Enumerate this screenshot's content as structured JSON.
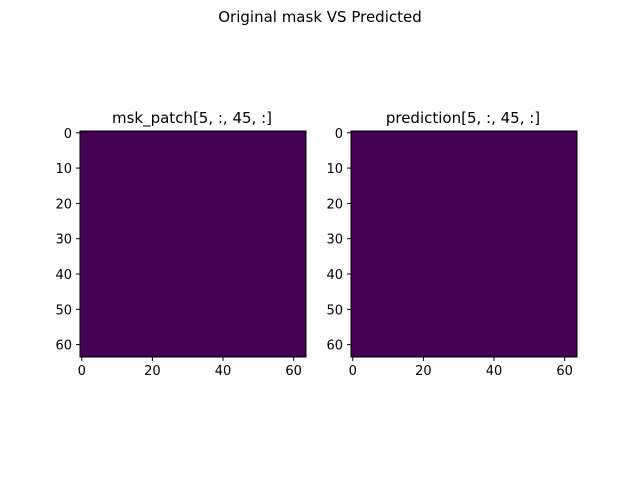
{
  "figure": {
    "suptitle": "Original mask VS Predicted"
  },
  "chart_data": [
    {
      "type": "heatmap",
      "title": "msk_patch[5, :, 45, :]",
      "xlabel": "",
      "ylabel": "",
      "rows": 64,
      "cols": 64,
      "fill_value": 0,
      "colormap": "viridis",
      "fill_color": "#440154",
      "xlim": [
        -0.5,
        63.5
      ],
      "ylim": [
        63.5,
        -0.5
      ],
      "xticks": [
        0,
        20,
        40,
        60
      ],
      "yticks": [
        0,
        10,
        20,
        30,
        40,
        50,
        60
      ],
      "grid": false
    },
    {
      "type": "heatmap",
      "title": "prediction[5, :, 45, :]",
      "xlabel": "",
      "ylabel": "",
      "rows": 64,
      "cols": 64,
      "fill_value": 0,
      "colormap": "viridis",
      "fill_color": "#440154",
      "xlim": [
        -0.5,
        63.5
      ],
      "ylim": [
        63.5,
        -0.5
      ],
      "xticks": [
        0,
        20,
        40,
        60
      ],
      "yticks": [
        0,
        10,
        20,
        30,
        40,
        50,
        60
      ],
      "grid": false
    }
  ]
}
